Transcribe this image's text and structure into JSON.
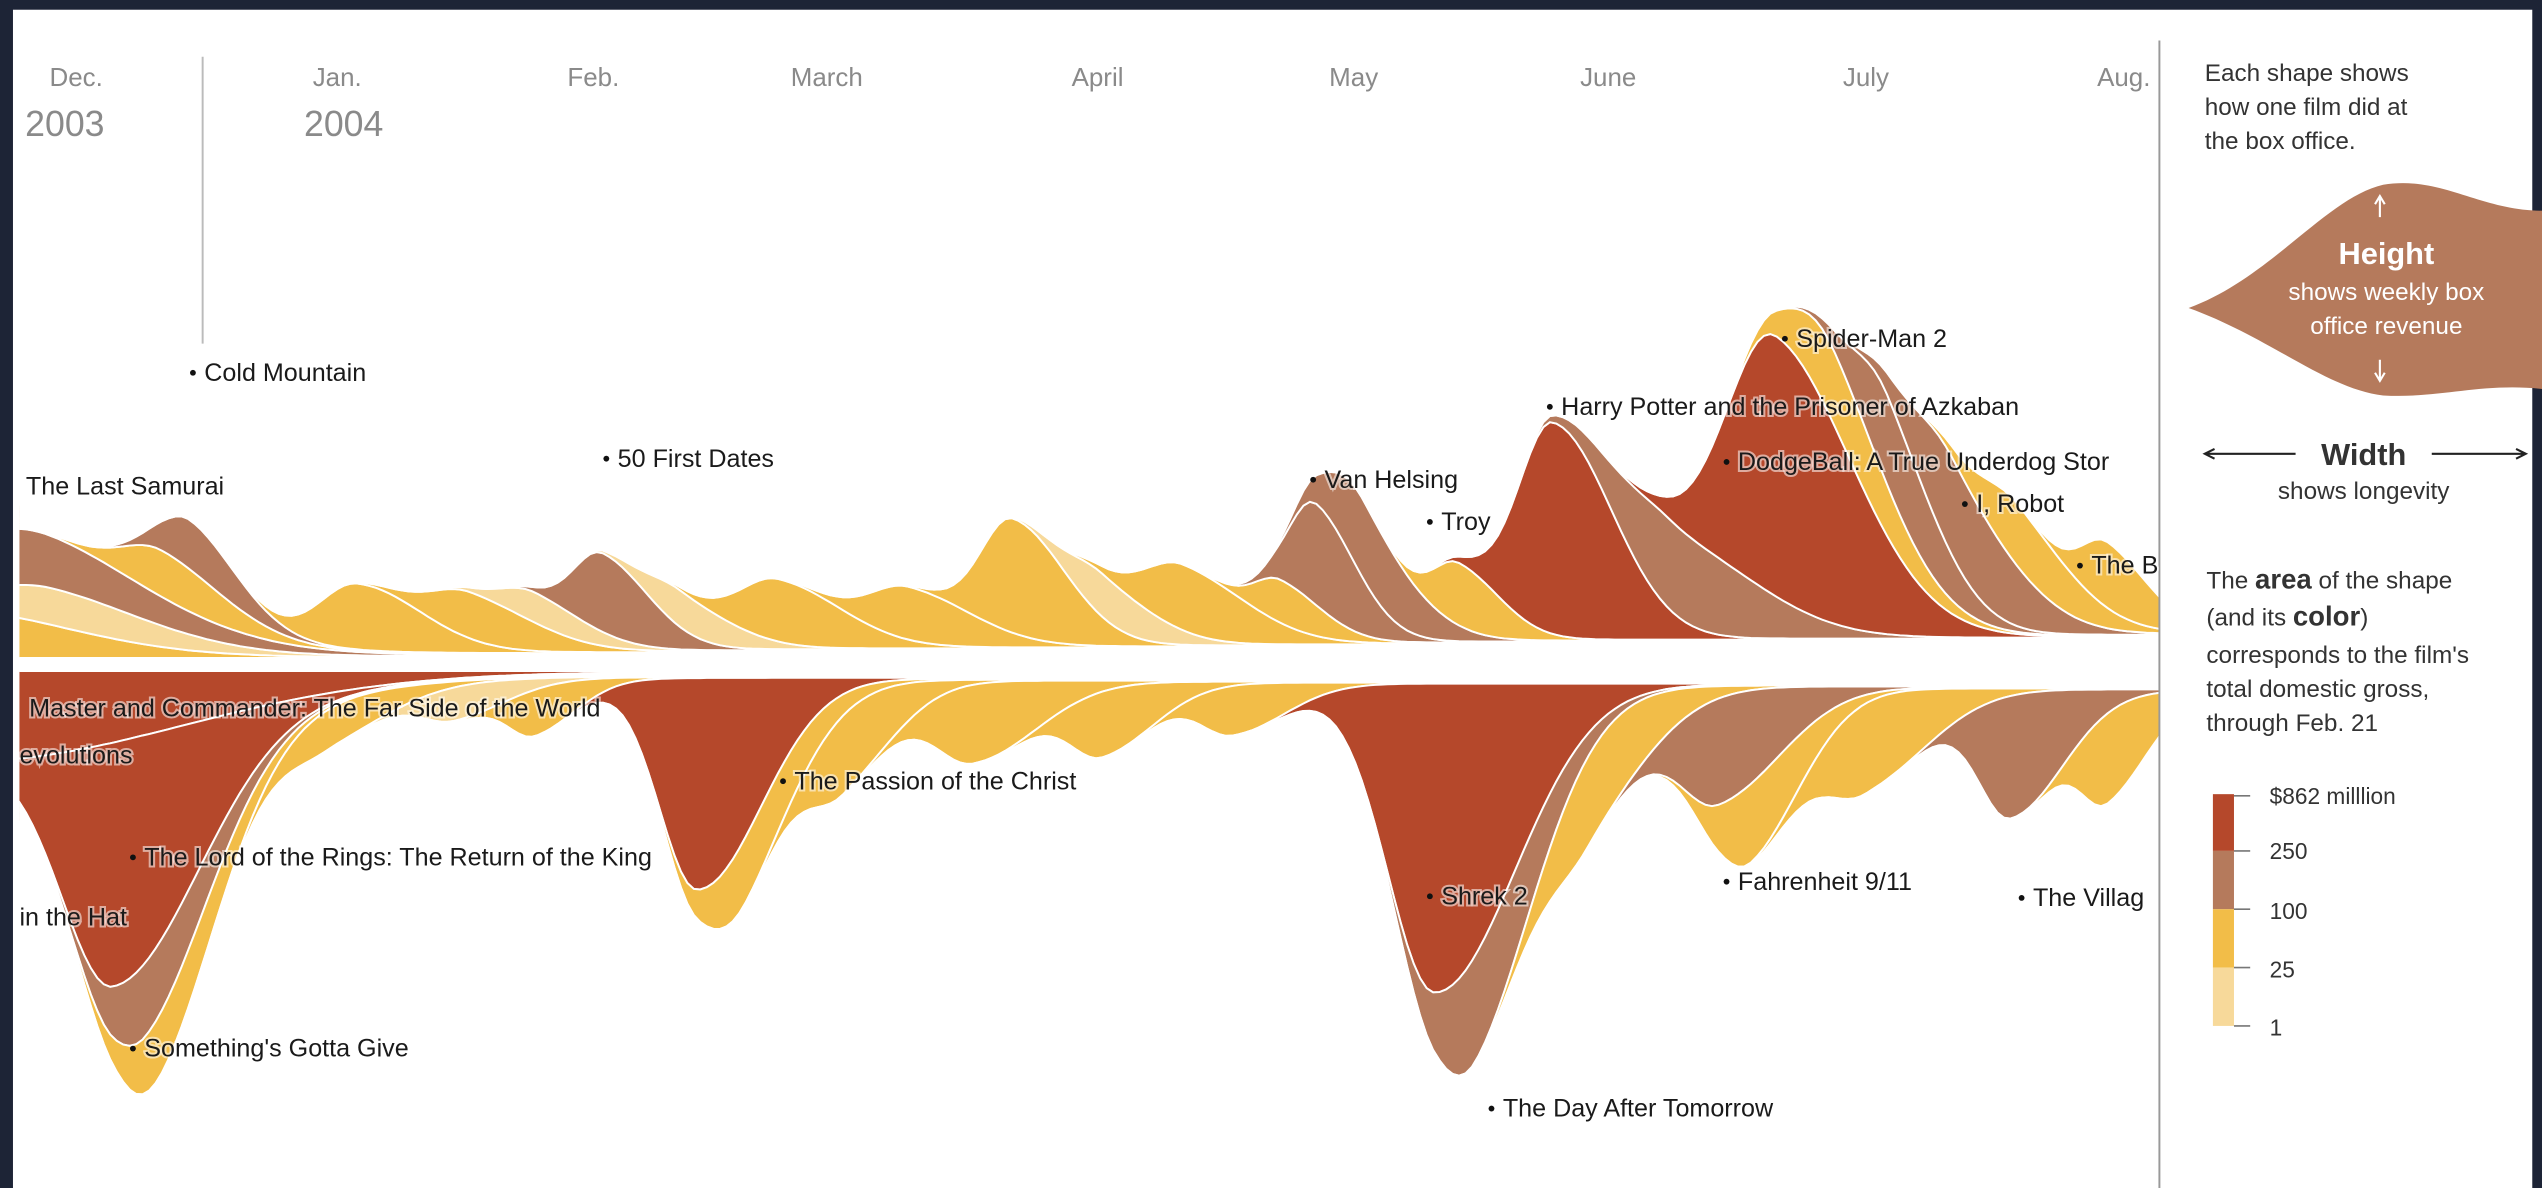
{
  "header": {
    "months": [
      "Dec.",
      "Jan.",
      "Feb.",
      "March",
      "April",
      "May",
      "June",
      "July",
      "Aug."
    ],
    "years": [
      "2003",
      "2004"
    ]
  },
  "films": [
    "Cold Mountain",
    "The Last Samurai",
    "50 First Dates",
    "Van Helsing",
    "Troy",
    "Harry Potter and the Prisoner of Azkaban",
    "Spider-Man 2",
    "DodgeBall: A True Underdog Stor",
    "I, Robot",
    "The B",
    "Master and Commander: The Far Side of the World",
    "evolutions",
    "The Lord of the Rings: The Return of the King",
    "in the Hat",
    "Something's Gotta Give",
    "The Passion of the Christ",
    "Shrek 2",
    "The Day After Tomorrow",
    "Fahrenheit 9/11",
    "The Villag"
  ],
  "legend": {
    "intro": [
      "Each shape shows",
      "how one film did at",
      "the box office."
    ],
    "height": {
      "title": "Height",
      "lines": [
        "shows weekly box",
        "office revenue"
      ]
    },
    "width": {
      "title": "Width",
      "text": "shows longevity"
    },
    "area": [
      [
        "The ",
        "area",
        " of the shape"
      ],
      [
        "(and its ",
        "color",
        ")"
      ],
      [
        "corresponds to the film's"
      ],
      [
        "total domestic gross,"
      ],
      [
        "through Feb. 21"
      ]
    ],
    "scale": [
      "$862 milllion",
      "250",
      "100",
      "25",
      "1"
    ]
  }
}
